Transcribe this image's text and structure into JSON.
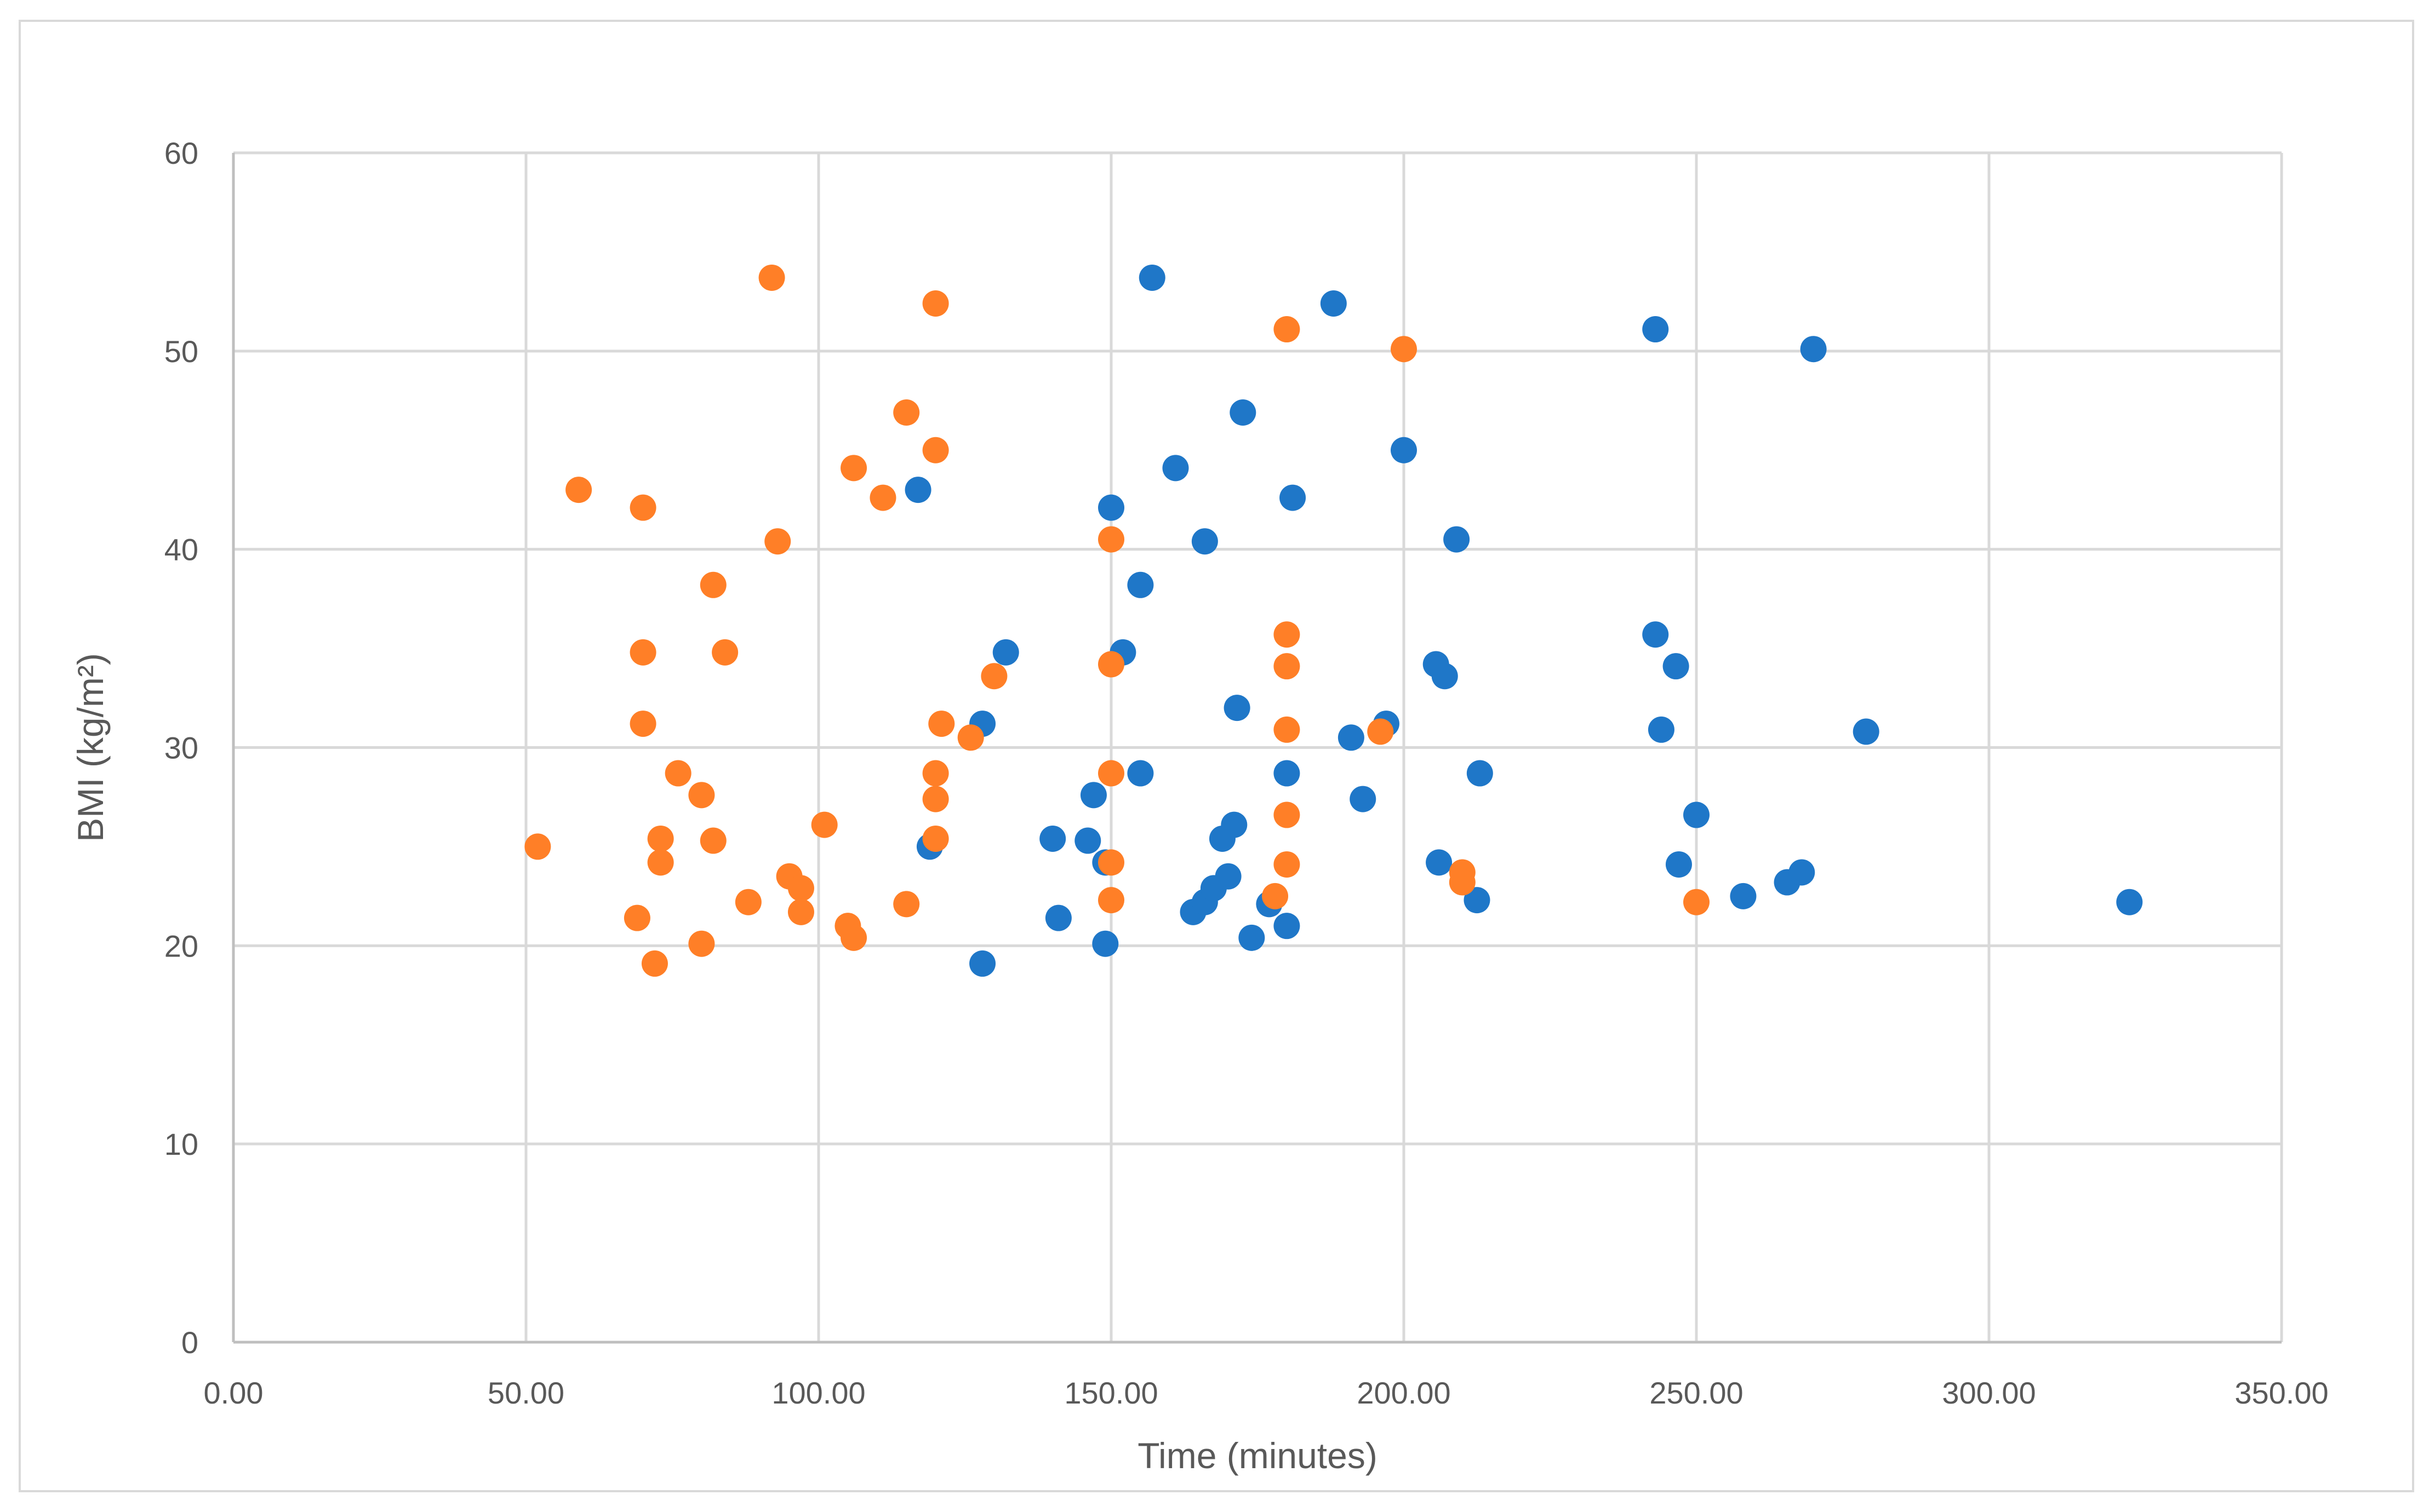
{
  "chart_data": {
    "type": "scatter",
    "xlabel": "Time (minutes)",
    "ylabel": "BMI (kg/m²)",
    "xlim": [
      0,
      350
    ],
    "ylim": [
      0,
      60
    ],
    "x_ticks": [
      "0.00",
      "50.00",
      "100.00",
      "150.00",
      "200.00",
      "250.00",
      "300.00",
      "350.00"
    ],
    "y_ticks": [
      "0",
      "10",
      "20",
      "30",
      "40",
      "50",
      "60"
    ],
    "grid": true,
    "legend": "none",
    "series": [
      {
        "color": "#1f77c8",
        "points": [
          [
            157,
            53.7
          ],
          [
            188,
            52.4
          ],
          [
            243,
            51.1
          ],
          [
            270,
            50.1
          ],
          [
            200,
            45.0
          ],
          [
            161,
            44.1
          ],
          [
            172.5,
            46.9
          ],
          [
            117,
            43.0
          ],
          [
            150,
            42.1
          ],
          [
            181,
            42.6
          ],
          [
            166,
            40.4
          ],
          [
            209,
            40.5
          ],
          [
            155,
            38.2
          ],
          [
            132,
            34.8
          ],
          [
            152,
            34.8
          ],
          [
            243,
            35.7
          ],
          [
            205.5,
            34.2
          ],
          [
            207,
            33.6
          ],
          [
            246.5,
            34.1
          ],
          [
            128,
            31.2
          ],
          [
            171.5,
            32.0
          ],
          [
            191,
            30.5
          ],
          [
            197,
            31.2
          ],
          [
            244,
            30.9
          ],
          [
            279,
            30.8
          ],
          [
            119,
            25.0
          ],
          [
            155,
            28.7
          ],
          [
            147,
            27.6
          ],
          [
            180,
            28.7
          ],
          [
            193,
            27.4
          ],
          [
            213,
            28.7
          ],
          [
            140,
            25.4
          ],
          [
            146,
            25.3
          ],
          [
            149,
            24.2
          ],
          [
            169,
            25.4
          ],
          [
            171,
            26.1
          ],
          [
            250,
            26.6
          ],
          [
            206,
            24.2
          ],
          [
            247,
            24.1
          ],
          [
            141,
            21.4
          ],
          [
            164,
            21.7
          ],
          [
            166,
            22.2
          ],
          [
            167.5,
            22.9
          ],
          [
            170,
            23.5
          ],
          [
            177,
            22.1
          ],
          [
            180,
            21.0
          ],
          [
            174,
            20.4
          ],
          [
            149,
            20.1
          ],
          [
            128,
            19.1
          ],
          [
            212.5,
            22.3
          ],
          [
            258,
            22.5
          ],
          [
            265.5,
            23.2
          ],
          [
            268,
            23.7
          ],
          [
            324,
            22.2
          ]
        ]
      },
      {
        "color": "#ff7f27",
        "points": [
          [
            92,
            53.7
          ],
          [
            120,
            52.4
          ],
          [
            180,
            51.1
          ],
          [
            200,
            50.1
          ],
          [
            115,
            46.9
          ],
          [
            120,
            45.0
          ],
          [
            106,
            44.1
          ],
          [
            111,
            42.6
          ],
          [
            59,
            43.0
          ],
          [
            70,
            42.1
          ],
          [
            93,
            40.4
          ],
          [
            150,
            40.5
          ],
          [
            82,
            38.2
          ],
          [
            70,
            34.8
          ],
          [
            84,
            34.8
          ],
          [
            180,
            35.7
          ],
          [
            150,
            34.2
          ],
          [
            180,
            34.1
          ],
          [
            130,
            33.6
          ],
          [
            70,
            31.2
          ],
          [
            121,
            31.2
          ],
          [
            126,
            30.5
          ],
          [
            180,
            30.9
          ],
          [
            196,
            30.8
          ],
          [
            76,
            28.7
          ],
          [
            120,
            28.7
          ],
          [
            150,
            28.7
          ],
          [
            80,
            27.6
          ],
          [
            120,
            27.4
          ],
          [
            101,
            26.1
          ],
          [
            180,
            26.6
          ],
          [
            73,
            25.4
          ],
          [
            82,
            25.3
          ],
          [
            120,
            25.4
          ],
          [
            52,
            25.0
          ],
          [
            73,
            24.2
          ],
          [
            150,
            24.2
          ],
          [
            180,
            24.1
          ],
          [
            95,
            23.5
          ],
          [
            97,
            22.9
          ],
          [
            210,
            23.7
          ],
          [
            210,
            23.2
          ],
          [
            88,
            22.2
          ],
          [
            115,
            22.1
          ],
          [
            150,
            22.3
          ],
          [
            178,
            22.5
          ],
          [
            250,
            22.2
          ],
          [
            69,
            21.4
          ],
          [
            97,
            21.7
          ],
          [
            105,
            21.0
          ],
          [
            106,
            20.4
          ],
          [
            80,
            20.1
          ],
          [
            72,
            19.1
          ]
        ]
      }
    ]
  }
}
